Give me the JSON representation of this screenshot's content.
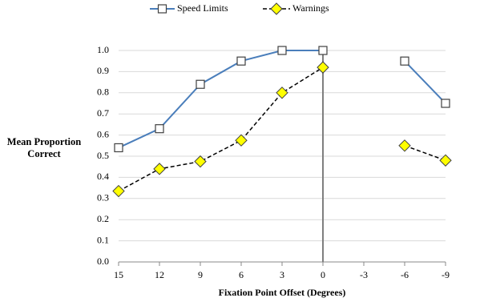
{
  "chart_data": {
    "type": "line",
    "x_label": "Fixation Point Offset (Degrees)",
    "y_label": "Mean Proportion Correct",
    "x": [
      15,
      12,
      9,
      6,
      3,
      0,
      -3,
      -6,
      -9
    ],
    "xlim": [
      15,
      -9
    ],
    "xticks": [
      15,
      12,
      9,
      6,
      3,
      0,
      -3,
      -6,
      -9
    ],
    "ylim": [
      0,
      1
    ],
    "yticks": [
      {
        "value": 0,
        "label": "0.0"
      },
      0.1,
      0.2,
      0.3,
      0.4,
      0.5,
      0.6,
      0.7,
      0.8,
      0.9,
      {
        "value": 1,
        "label": "1.0"
      }
    ],
    "grid": true,
    "vline": 0,
    "legend": "top",
    "series": [
      {
        "name": "Speed Limits",
        "color": "#4a7ebb",
        "marker": "square",
        "dash": false,
        "values": [
          0.54,
          0.63,
          0.84,
          0.95,
          1.0,
          1.0,
          null,
          0.95,
          0.75
        ]
      },
      {
        "name": "Warnings",
        "color": "#000000",
        "marker": "diamond",
        "marker_color": "#ffff00",
        "dash": true,
        "values": [
          0.335,
          0.44,
          0.475,
          0.575,
          0.8,
          0.92,
          null,
          0.55,
          0.48
        ]
      }
    ]
  }
}
